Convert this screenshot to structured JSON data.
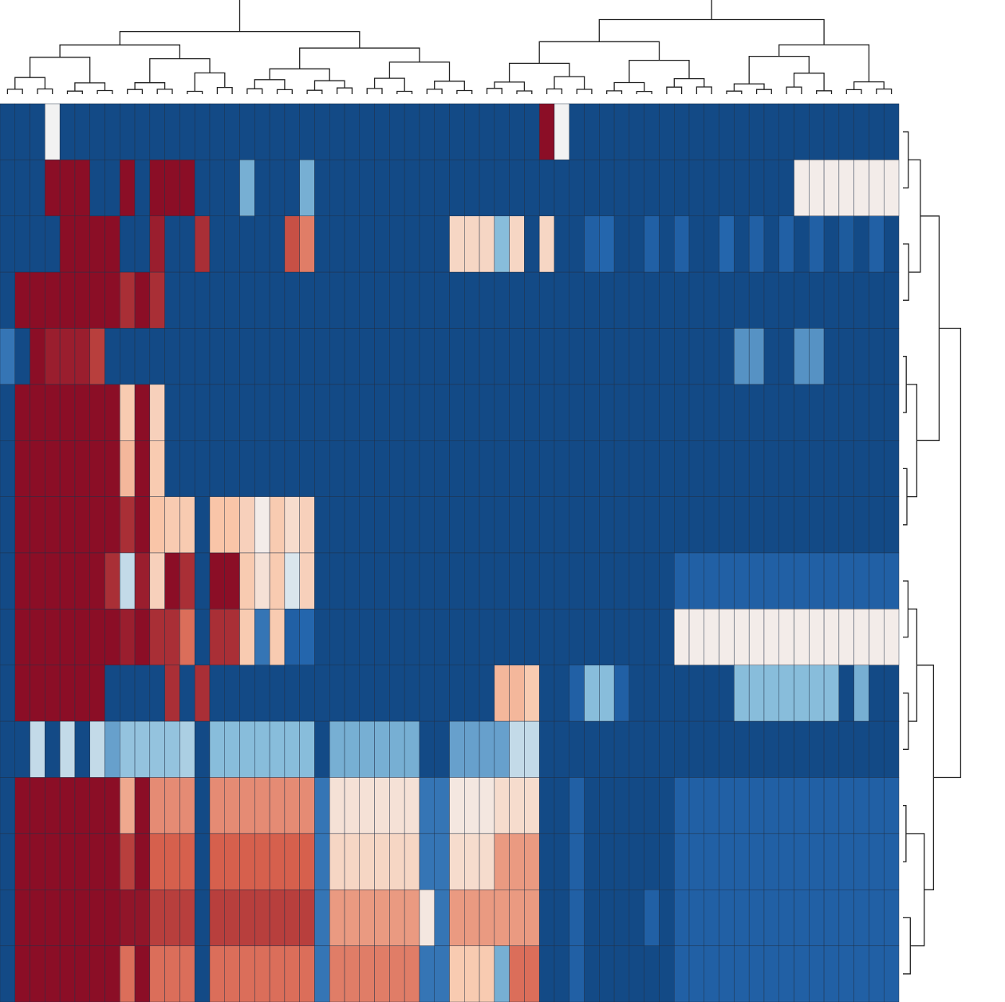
{
  "chart_data": {
    "type": "heatmap",
    "title": "",
    "xlabel": "",
    "ylabel": "",
    "n_rows": 16,
    "n_cols": 60,
    "value_range": [
      -1,
      1
    ],
    "colormap": "diverging-blue-white-red",
    "dendrogram_top": true,
    "dendrogram_right": true,
    "cell_borders": true,
    "colors": {
      "deep_blue": "#134a86",
      "mid_blue": "#2466ad",
      "light_blue": "#88bddb",
      "white": "#f2f2f2",
      "light_red": "#f9c5a8",
      "mid_red": "#d6604d",
      "deep_red": "#8b0e26"
    },
    "row_segments": [
      [
        [
          0,
          3,
          -1
        ],
        [
          3,
          1,
          0
        ],
        [
          4,
          32,
          -1
        ],
        [
          36,
          1,
          1
        ],
        [
          37,
          1,
          0
        ],
        [
          38,
          22,
          -1
        ]
      ],
      [
        [
          0,
          3,
          -1
        ],
        [
          3,
          3,
          1
        ],
        [
          6,
          2,
          -1
        ],
        [
          8,
          1,
          1
        ],
        [
          9,
          1,
          -1
        ],
        [
          10,
          3,
          1
        ],
        [
          13,
          3,
          -1
        ],
        [
          16,
          1,
          -0.5
        ],
        [
          17,
          3,
          -1
        ],
        [
          20,
          1,
          -0.5
        ],
        [
          21,
          32,
          -1
        ],
        [
          53,
          7,
          0.05
        ]
      ],
      [
        [
          0,
          4,
          -1
        ],
        [
          4,
          4,
          1
        ],
        [
          8,
          2,
          -1
        ],
        [
          10,
          1,
          0.95
        ],
        [
          11,
          2,
          -1
        ],
        [
          13,
          1,
          0.9
        ],
        [
          14,
          5,
          -1
        ],
        [
          19,
          1,
          0.8
        ],
        [
          20,
          1,
          0.65
        ],
        [
          21,
          9,
          -1
        ],
        [
          30,
          3,
          0.25
        ],
        [
          33,
          1,
          -0.45
        ],
        [
          34,
          1,
          0.25
        ],
        [
          35,
          1,
          -1
        ],
        [
          36,
          1,
          0.25
        ],
        [
          37,
          2,
          -1
        ],
        [
          39,
          1,
          -0.8
        ],
        [
          40,
          1,
          -0.75
        ],
        [
          41,
          2,
          -1
        ],
        [
          43,
          1,
          -0.8
        ],
        [
          44,
          1,
          -1
        ],
        [
          45,
          1,
          -0.8
        ],
        [
          46,
          2,
          -1
        ],
        [
          48,
          1,
          -0.75
        ],
        [
          49,
          1,
          -1
        ],
        [
          50,
          1,
          -0.8
        ],
        [
          51,
          1,
          -1
        ],
        [
          52,
          1,
          -0.8
        ],
        [
          53,
          1,
          -1
        ],
        [
          54,
          1,
          -0.8
        ],
        [
          55,
          1,
          -1
        ],
        [
          56,
          1,
          -0.85
        ],
        [
          57,
          1,
          -1
        ],
        [
          58,
          1,
          -0.8
        ],
        [
          59,
          1,
          -1
        ]
      ],
      [
        [
          0,
          1,
          -1
        ],
        [
          1,
          7,
          1
        ],
        [
          8,
          1,
          0.9
        ],
        [
          9,
          1,
          1
        ],
        [
          10,
          1,
          0.9
        ],
        [
          11,
          49,
          -1
        ]
      ],
      [
        [
          0,
          1,
          -0.7
        ],
        [
          1,
          1,
          -1
        ],
        [
          2,
          1,
          1
        ],
        [
          3,
          3,
          0.95
        ],
        [
          6,
          1,
          0.85
        ],
        [
          7,
          42,
          -1
        ],
        [
          49,
          2,
          -0.6
        ],
        [
          51,
          2,
          -1
        ],
        [
          53,
          2,
          -0.6
        ],
        [
          55,
          5,
          -1
        ]
      ],
      [
        [
          0,
          1,
          -1
        ],
        [
          1,
          7,
          1
        ],
        [
          8,
          1,
          0.35
        ],
        [
          9,
          1,
          1
        ],
        [
          10,
          1,
          0.3
        ],
        [
          11,
          49,
          -1
        ]
      ],
      [
        [
          0,
          1,
          -1
        ],
        [
          1,
          7,
          1
        ],
        [
          8,
          1,
          0.45
        ],
        [
          9,
          1,
          1
        ],
        [
          10,
          1,
          0.35
        ],
        [
          11,
          49,
          -1
        ]
      ],
      [
        [
          0,
          1,
          -1
        ],
        [
          1,
          7,
          1
        ],
        [
          8,
          1,
          0.9
        ],
        [
          9,
          1,
          1
        ],
        [
          10,
          1,
          0.4
        ],
        [
          11,
          2,
          0.35
        ],
        [
          13,
          1,
          -1
        ],
        [
          14,
          2,
          0.4
        ],
        [
          16,
          1,
          0.3
        ],
        [
          17,
          1,
          0.05
        ],
        [
          18,
          1,
          0.35
        ],
        [
          19,
          1,
          0.2
        ],
        [
          20,
          1,
          0.3
        ],
        [
          21,
          39,
          -1
        ]
      ],
      [
        [
          0,
          1,
          -1
        ],
        [
          1,
          6,
          1
        ],
        [
          7,
          1,
          0.9
        ],
        [
          8,
          1,
          -0.2
        ],
        [
          9,
          1,
          0.95
        ],
        [
          10,
          1,
          0.3
        ],
        [
          11,
          1,
          1
        ],
        [
          12,
          1,
          0.9
        ],
        [
          13,
          1,
          -1
        ],
        [
          14,
          2,
          1
        ],
        [
          16,
          1,
          0.35
        ],
        [
          17,
          1,
          0.15
        ],
        [
          18,
          1,
          0.35
        ],
        [
          19,
          1,
          -0.1
        ],
        [
          20,
          1,
          0.3
        ],
        [
          21,
          24,
          -1
        ],
        [
          45,
          15,
          -0.8
        ]
      ],
      [
        [
          0,
          1,
          -1
        ],
        [
          1,
          7,
          1
        ],
        [
          8,
          1,
          0.95
        ],
        [
          9,
          1,
          1
        ],
        [
          10,
          2,
          0.9
        ],
        [
          12,
          1,
          0.7
        ],
        [
          13,
          1,
          -1
        ],
        [
          14,
          2,
          0.9
        ],
        [
          16,
          1,
          0.35
        ],
        [
          17,
          1,
          -0.7
        ],
        [
          18,
          1,
          0.35
        ],
        [
          19,
          1,
          -0.8
        ],
        [
          20,
          1,
          -0.75
        ],
        [
          21,
          24,
          -1
        ],
        [
          45,
          15,
          0.05
        ]
      ],
      [
        [
          0,
          1,
          -1
        ],
        [
          1,
          6,
          1
        ],
        [
          7,
          4,
          -1
        ],
        [
          11,
          1,
          0.9
        ],
        [
          12,
          1,
          -1
        ],
        [
          13,
          1,
          0.9
        ],
        [
          14,
          19,
          -1
        ],
        [
          33,
          2,
          0.45
        ],
        [
          35,
          1,
          0.35
        ],
        [
          36,
          2,
          -1
        ],
        [
          38,
          1,
          -0.8
        ],
        [
          39,
          2,
          -0.45
        ],
        [
          41,
          1,
          -0.8
        ],
        [
          42,
          7,
          -1
        ],
        [
          49,
          7,
          -0.45
        ],
        [
          56,
          1,
          -1
        ],
        [
          57,
          1,
          -0.5
        ],
        [
          58,
          2,
          -1
        ]
      ],
      [
        [
          0,
          2,
          -1
        ],
        [
          2,
          1,
          -0.2
        ],
        [
          3,
          1,
          -1
        ],
        [
          4,
          1,
          -0.2
        ],
        [
          5,
          1,
          -1
        ],
        [
          6,
          1,
          -0.2
        ],
        [
          7,
          1,
          -0.55
        ],
        [
          8,
          4,
          -0.4
        ],
        [
          12,
          1,
          -0.3
        ],
        [
          13,
          1,
          -1
        ],
        [
          14,
          7,
          -0.45
        ],
        [
          21,
          1,
          -1
        ],
        [
          22,
          6,
          -0.5
        ],
        [
          28,
          2,
          -1
        ],
        [
          30,
          4,
          -0.55
        ],
        [
          34,
          2,
          -0.2
        ],
        [
          36,
          24,
          -1
        ]
      ],
      [
        [
          0,
          1,
          -1
        ],
        [
          1,
          7,
          1
        ],
        [
          8,
          1,
          0.5
        ],
        [
          9,
          1,
          1
        ],
        [
          10,
          3,
          0.6
        ],
        [
          13,
          1,
          -1
        ],
        [
          14,
          7,
          0.6
        ],
        [
          21,
          1,
          -0.7
        ],
        [
          22,
          6,
          0.15
        ],
        [
          28,
          2,
          -0.7
        ],
        [
          30,
          3,
          0.1
        ],
        [
          33,
          3,
          0.2
        ],
        [
          36,
          2,
          -1
        ],
        [
          38,
          1,
          -0.8
        ],
        [
          39,
          5,
          -1
        ],
        [
          44,
          1,
          -1
        ],
        [
          45,
          15,
          -0.8
        ]
      ],
      [
        [
          0,
          1,
          -1
        ],
        [
          1,
          7,
          1
        ],
        [
          8,
          1,
          0.85
        ],
        [
          9,
          1,
          1
        ],
        [
          10,
          3,
          0.75
        ],
        [
          13,
          1,
          -1
        ],
        [
          14,
          7,
          0.75
        ],
        [
          21,
          1,
          -0.7
        ],
        [
          22,
          6,
          0.25
        ],
        [
          28,
          2,
          -0.7
        ],
        [
          30,
          3,
          0.2
        ],
        [
          33,
          3,
          0.55
        ],
        [
          36,
          2,
          -1
        ],
        [
          38,
          1,
          -0.8
        ],
        [
          39,
          5,
          -1
        ],
        [
          44,
          1,
          -1
        ],
        [
          45,
          15,
          -0.8
        ]
      ],
      [
        [
          0,
          1,
          -1
        ],
        [
          1,
          7,
          1
        ],
        [
          8,
          2,
          0.98
        ],
        [
          10,
          3,
          0.85
        ],
        [
          13,
          1,
          -1
        ],
        [
          14,
          7,
          0.85
        ],
        [
          21,
          1,
          -0.7
        ],
        [
          22,
          6,
          0.55
        ],
        [
          28,
          1,
          0.1
        ],
        [
          29,
          1,
          -0.7
        ],
        [
          30,
          3,
          0.55
        ],
        [
          33,
          3,
          0.55
        ],
        [
          36,
          2,
          -1
        ],
        [
          38,
          1,
          -0.8
        ],
        [
          39,
          4,
          -1
        ],
        [
          43,
          1,
          -0.8
        ],
        [
          44,
          1,
          -1
        ],
        [
          45,
          15,
          -0.8
        ]
      ],
      [
        [
          0,
          1,
          -1
        ],
        [
          1,
          7,
          1
        ],
        [
          8,
          1,
          0.7
        ],
        [
          9,
          1,
          1
        ],
        [
          10,
          3,
          0.7
        ],
        [
          13,
          1,
          -1
        ],
        [
          14,
          7,
          0.7
        ],
        [
          21,
          1,
          -0.7
        ],
        [
          22,
          6,
          0.65
        ],
        [
          28,
          2,
          -0.7
        ],
        [
          30,
          3,
          0.35
        ],
        [
          33,
          1,
          -0.5
        ],
        [
          34,
          2,
          0.7
        ],
        [
          36,
          2,
          -1
        ],
        [
          38,
          1,
          -0.8
        ],
        [
          39,
          5,
          -1
        ],
        [
          44,
          1,
          -1
        ],
        [
          45,
          15,
          -0.8
        ]
      ]
    ]
  }
}
